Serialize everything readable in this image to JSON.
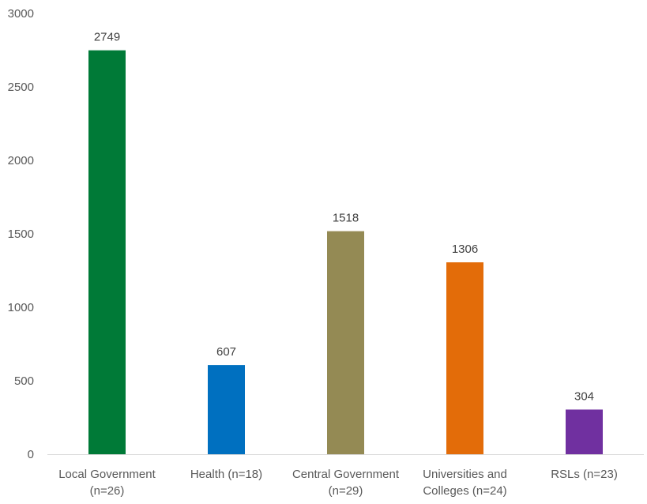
{
  "chart_data": {
    "type": "bar",
    "categories": [
      [
        "Local Government",
        "(n=26)"
      ],
      [
        "Health (n=18)"
      ],
      [
        "Central Government",
        "(n=29)"
      ],
      [
        "Universities and",
        "Colleges (n=24)"
      ],
      [
        "RSLs (n=23)"
      ]
    ],
    "values": [
      2749,
      607,
      1518,
      1306,
      304
    ],
    "colors": [
      "#007A37",
      "#0070C0",
      "#948A54",
      "#E36C09",
      "#7030A0"
    ],
    "ylim": [
      0,
      3000
    ],
    "yticks": [
      0,
      500,
      1000,
      1500,
      2000,
      2500,
      3000
    ],
    "grid": false,
    "data_labels": true,
    "title": "",
    "xlabel": "",
    "ylabel": ""
  }
}
